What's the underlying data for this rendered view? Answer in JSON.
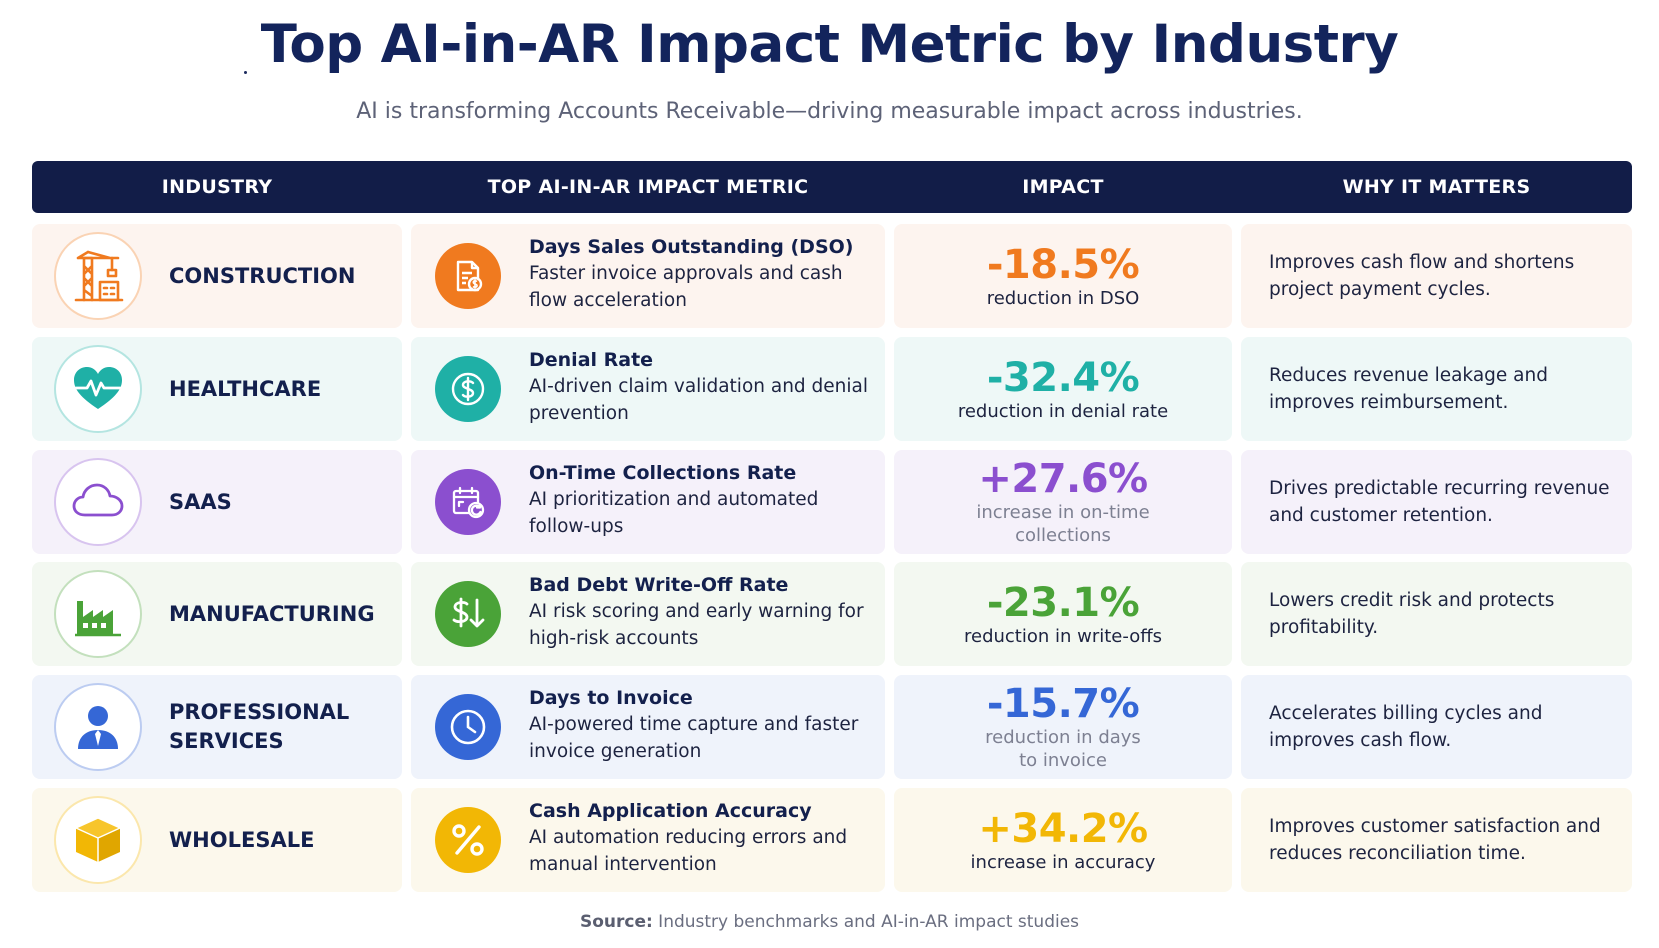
{
  "header": {
    "title": "Top AI-in-AR Impact Metric by Industry",
    "subtitle": "AI is transforming Accounts Receivable—driving measurable impact across industries."
  },
  "table": {
    "columns": [
      "INDUSTRY",
      "TOP AI-IN-AR IMPACT METRIC",
      "IMPACT",
      "WHY IT MATTERS"
    ],
    "rows": [
      {
        "industry": "CONSTRUCTION",
        "industry_icon": "crane-icon",
        "metric_icon": "invoice-dollar-icon",
        "metric_title": "Days Sales Outstanding (DSO)",
        "metric_desc": "Faster invoice approvals and cash flow acceleration",
        "impact_value": "-18.5%",
        "impact_label": "reduction in DSO",
        "why": "Improves cash flow and shortens project payment cycles.",
        "accent": "#f07a1f",
        "bg": "#fdf4ef"
      },
      {
        "industry": "HEALTHCARE",
        "industry_icon": "heartbeat-icon",
        "metric_icon": "dollar-coin-icon",
        "metric_title": "Denial Rate",
        "metric_desc": "AI-driven claim validation and denial prevention",
        "impact_value": "-32.4%",
        "impact_label": "reduction in denial rate",
        "why": "Reduces revenue leakage and improves reimbursement.",
        "accent": "#1fb0a6",
        "bg": "#eef8f7"
      },
      {
        "industry": "SAAS",
        "industry_icon": "cloud-icon",
        "metric_icon": "calendar-refresh-icon",
        "metric_title": "On-Time Collections Rate",
        "metric_desc": "AI prioritization and automated follow-ups",
        "impact_value": "+27.6%",
        "impact_label": "increase in on-time collections",
        "why": "Drives predictable recurring revenue and customer retention.",
        "accent": "#8b4fcf",
        "bg": "#f5f1fa"
      },
      {
        "industry": "MANUFACTURING",
        "industry_icon": "factory-icon",
        "metric_icon": "dollar-down-icon",
        "metric_title": "Bad Debt Write-Off Rate",
        "metric_desc": "AI risk scoring and early warning for high-risk accounts",
        "impact_value": "-23.1%",
        "impact_label": "reduction in write-offs",
        "why": "Lowers credit risk and protects profitability.",
        "accent": "#4aa338",
        "bg": "#f3f8f1"
      },
      {
        "industry": "PROFESSIONAL\nSERVICES",
        "industry_icon": "person-icon",
        "metric_icon": "clock-icon",
        "metric_title": "Days to Invoice",
        "metric_desc": "AI-powered time capture and faster invoice generation",
        "impact_value": "-15.7%",
        "impact_label": "reduction in days to invoice",
        "why": "Accelerates billing cycles and improves cash flow.",
        "accent": "#3567d6",
        "bg": "#eff3fb"
      },
      {
        "industry": "WHOLESALE",
        "industry_icon": "box-icon",
        "metric_icon": "percent-icon",
        "metric_title": "Cash Application Accuracy",
        "metric_desc": "AI automation reducing errors and manual intervention",
        "impact_value": "+34.2%",
        "impact_label": "increase in accuracy",
        "why": "Improves customer satisfaction and reduces reconciliation time.",
        "accent": "#f2b705",
        "bg": "#fcf8ec"
      }
    ]
  },
  "footer": {
    "source_label": "Source:",
    "source_text": " Industry benchmarks and AI-in-AR impact studies"
  }
}
